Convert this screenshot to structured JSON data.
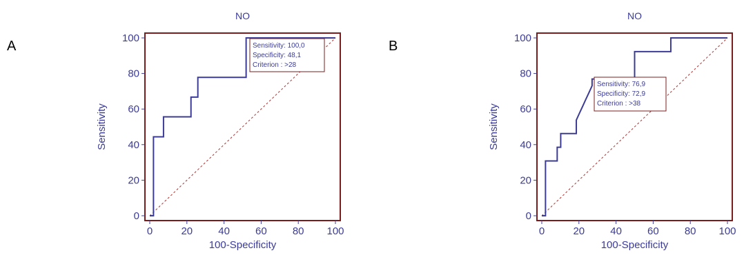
{
  "panels": [
    {
      "letter": "A"
    },
    {
      "letter": "B"
    }
  ],
  "chart_data": [
    {
      "type": "line",
      "title": "NO",
      "xlabel": "100-Specificity",
      "ylabel": "Sensitivity",
      "xlim": [
        0,
        100
      ],
      "ylim": [
        0,
        100
      ],
      "xticks": [
        "0",
        "20",
        "40",
        "60",
        "80",
        "100"
      ],
      "yticks": [
        "0",
        "20",
        "40",
        "60",
        "80",
        "100"
      ],
      "grid": false,
      "series": [
        {
          "x": [
            0,
            2,
            2,
            7.4,
            7.4,
            22.2,
            22.2,
            25.9,
            25.9,
            29.6,
            29.6,
            51.9,
            51.9,
            100
          ],
          "y": [
            0,
            0,
            44.4,
            44.4,
            55.6,
            55.6,
            66.7,
            66.7,
            77.8,
            77.8,
            77.8,
            77.8,
            100,
            100
          ]
        }
      ],
      "reference_line": {
        "x": [
          0,
          100
        ],
        "y": [
          0,
          100
        ]
      },
      "annotation": {
        "lines": [
          "Sensitivity: 100,0",
          "Specificity: 48,1",
          "Criterion : >28"
        ]
      },
      "colors": {
        "curve": "#3b3b96",
        "frame": "#7b1c1c",
        "diagonal": "#b03030",
        "text": "#3b3b96"
      }
    },
    {
      "type": "line",
      "title": "NO",
      "xlabel": "100-Specificity",
      "ylabel": "Sensitivity",
      "xlim": [
        0,
        100
      ],
      "ylim": [
        0,
        100
      ],
      "xticks": [
        "0",
        "20",
        "40",
        "60",
        "80",
        "100"
      ],
      "yticks": [
        "0",
        "20",
        "40",
        "60",
        "80",
        "100"
      ],
      "grid": false,
      "series": [
        {
          "x": [
            0,
            2,
            2,
            8.3,
            8.3,
            10.2,
            10.2,
            18.6,
            18.6,
            20.3,
            22,
            23.7,
            25.4,
            27.1,
            27.1,
            50,
            50,
            50.8,
            67.8,
            69.5,
            69.5,
            100
          ],
          "y": [
            0,
            0,
            30.8,
            30.8,
            38.5,
            38.5,
            46.2,
            46.2,
            53.8,
            57.7,
            61.5,
            65.4,
            69.2,
            73.1,
            76.9,
            76.9,
            92.3,
            92.3,
            92.3,
            92.3,
            100,
            100
          ]
        }
      ],
      "reference_line": {
        "x": [
          0,
          100
        ],
        "y": [
          0,
          100
        ]
      },
      "annotation": {
        "lines": [
          "Sensitivity: 76,9",
          "Specificity: 72,9",
          "Criterion : >38"
        ]
      },
      "colors": {
        "curve": "#3b3b96",
        "frame": "#7b1c1c",
        "diagonal": "#b03030",
        "text": "#3b3b96"
      }
    }
  ]
}
